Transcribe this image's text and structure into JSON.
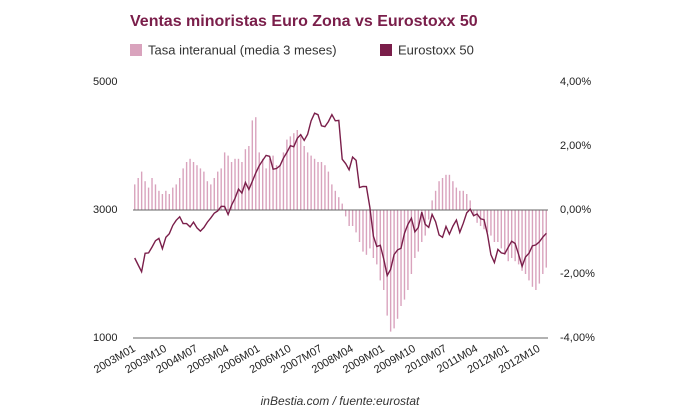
{
  "chart_data": {
    "type": "bar_line",
    "title": "Ventas minoristas Euro Zona vs Eurostoxx 50",
    "footer": "inBestia.com / fuente:eurostat",
    "categories": [
      "2003M01",
      null,
      null,
      null,
      null,
      null,
      null,
      null,
      null,
      "2003M10",
      null,
      null,
      null,
      null,
      null,
      null,
      null,
      null,
      "2004M07",
      null,
      null,
      null,
      null,
      null,
      null,
      null,
      null,
      "2005M04",
      null,
      null,
      null,
      null,
      null,
      null,
      null,
      null,
      "2006M01",
      null,
      null,
      null,
      null,
      null,
      null,
      null,
      null,
      "2006M10",
      null,
      null,
      null,
      null,
      null,
      null,
      null,
      null,
      "2007M07",
      null,
      null,
      null,
      null,
      null,
      null,
      null,
      null,
      "2008M04",
      null,
      null,
      null,
      null,
      null,
      null,
      null,
      null,
      "2009M01",
      null,
      null,
      null,
      null,
      null,
      null,
      null,
      null,
      "2009M10",
      null,
      null,
      null,
      null,
      null,
      null,
      null,
      null,
      "2010M07",
      null,
      null,
      null,
      null,
      null,
      null,
      null,
      null,
      "2011M04",
      null,
      null,
      null,
      null,
      null,
      null,
      null,
      null,
      "2012M01",
      null,
      null,
      null,
      null,
      null,
      null,
      null,
      null,
      "2012M10",
      null,
      null
    ],
    "series": [
      {
        "name": "Tasa interanual (media 3 meses)",
        "color": "#d9a3bd",
        "axis": "y2",
        "kind": "bar",
        "values": [
          0.8,
          1.0,
          1.2,
          0.9,
          0.7,
          1.0,
          0.8,
          0.6,
          0.5,
          0.6,
          0.5,
          0.7,
          0.8,
          1.0,
          1.3,
          1.5,
          1.6,
          1.5,
          1.4,
          1.3,
          1.2,
          0.9,
          0.8,
          1.0,
          1.2,
          1.3,
          1.8,
          1.7,
          1.5,
          1.6,
          1.6,
          1.5,
          1.9,
          2.0,
          2.8,
          2.9,
          1.8,
          1.6,
          1.3,
          1.6,
          1.7,
          1.4,
          1.4,
          1.8,
          2.2,
          2.3,
          2.4,
          2.5,
          2.3,
          2.0,
          1.8,
          1.7,
          1.6,
          1.5,
          1.5,
          1.4,
          1.2,
          0.8,
          0.6,
          0.4,
          0.2,
          -0.2,
          -0.5,
          -0.5,
          -0.7,
          -1.0,
          -1.3,
          -1.4,
          -1.2,
          -1.5,
          -1.7,
          -2.2,
          -2.5,
          -3.3,
          -3.8,
          -3.7,
          -3.4,
          -3.0,
          -2.8,
          -2.5,
          -2.0,
          -1.5,
          -1.3,
          -1.0,
          -0.8,
          -0.3,
          0.3,
          0.6,
          0.9,
          1.0,
          1.1,
          1.1,
          0.9,
          0.7,
          0.6,
          0.6,
          0.5,
          0.3,
          -0.2,
          -0.4,
          -0.5,
          -0.6,
          -0.7,
          -0.8,
          -1.0,
          -1.0,
          -1.2,
          -1.4,
          -1.6,
          -1.5,
          -1.6,
          -1.7,
          -1.9,
          -2.0,
          -2.2,
          -2.4,
          -2.5,
          -2.3,
          -2.0,
          -1.8
        ]
      },
      {
        "name": "Eurostoxx 50",
        "color": "#7a1e4a",
        "axis": "y",
        "kind": "line",
        "values": [
          2250,
          2140,
          2036,
          2324,
          2330,
          2420,
          2520,
          2556,
          2395,
          2575,
          2630,
          2760,
          2839,
          2893,
          2787,
          2787,
          2736,
          2811,
          2720,
          2671,
          2726,
          2811,
          2876,
          2951,
          2984,
          3058,
          3056,
          2930,
          3076,
          3182,
          3327,
          3264,
          3429,
          3321,
          3447,
          3579,
          3692,
          3775,
          3853,
          3839,
          3637,
          3649,
          3692,
          3809,
          3900,
          4004,
          3987,
          4120,
          4178,
          4087,
          4182,
          4393,
          4512,
          4489,
          4316,
          4302,
          4382,
          4490,
          4394,
          4400,
          3793,
          3724,
          3628,
          3826,
          3777,
          3352,
          3367,
          3366,
          3038,
          2591,
          2430,
          2448,
          2237,
          1977,
          2071,
          2304,
          2376,
          2402,
          2638,
          2775,
          2872,
          2659,
          2727,
          2965,
          2776,
          2728,
          2931,
          2817,
          2610,
          2573,
          2742,
          2623,
          2748,
          2844,
          2650,
          2793,
          2954,
          3013,
          2911,
          2937,
          2862,
          2849,
          2619,
          2302,
          2180,
          2385,
          2330,
          2317,
          2417,
          2512,
          2477,
          2306,
          2118,
          2265,
          2325,
          2441,
          2455,
          2503,
          2575,
          2636
        ]
      }
    ],
    "ylim": [
      1000,
      5000
    ],
    "yticks": [
      1000,
      3000,
      5000
    ],
    "y2lim": [
      -4,
      4
    ],
    "y2ticks": [
      {
        "value": -4,
        "label": "-4,00%"
      },
      {
        "value": -2,
        "label": "-2,00%"
      },
      {
        "value": 0,
        "label": "0,00%"
      },
      {
        "value": 2,
        "label": "2,00%"
      },
      {
        "value": 4,
        "label": "4,00%"
      }
    ]
  }
}
